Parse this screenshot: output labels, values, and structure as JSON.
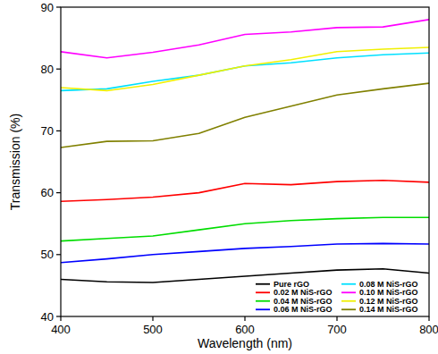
{
  "chart_data": {
    "type": "line",
    "x_label": "Wavelength (nm)",
    "y_label": "Transmission (%)",
    "x": [
      400,
      450,
      500,
      550,
      600,
      650,
      700,
      750,
      800
    ],
    "xlim": [
      400,
      800
    ],
    "xticks": [
      400,
      500,
      600,
      700,
      800
    ],
    "ylim": [
      40,
      90
    ],
    "yticks": [
      40,
      50,
      60,
      70,
      80,
      90
    ],
    "grid": false,
    "legend": "lower right",
    "series": [
      {
        "name": "Pure rGO",
        "color": "#000000",
        "values": [
          46.0,
          45.6,
          45.5,
          46.0,
          46.5,
          47.0,
          47.5,
          47.7,
          47.0
        ]
      },
      {
        "name": "0.02 M NiS-rGO",
        "color": "#ff0000",
        "values": [
          58.6,
          58.9,
          59.3,
          60.0,
          61.5,
          61.3,
          61.8,
          62.0,
          61.7
        ]
      },
      {
        "name": "0.04 M NiS-rGO",
        "color": "#00dd00",
        "values": [
          52.2,
          52.6,
          53.0,
          54.0,
          55.0,
          55.5,
          55.8,
          56.0,
          56.0
        ]
      },
      {
        "name": "0.06 M NiS-rGO",
        "color": "#0000ff",
        "values": [
          48.7,
          49.3,
          50.0,
          50.5,
          51.0,
          51.3,
          51.7,
          51.8,
          51.7
        ]
      },
      {
        "name": "0.08 M NiS-rGO",
        "color": "#00e0ff",
        "values": [
          76.5,
          76.8,
          78.0,
          79.0,
          80.5,
          81.0,
          81.8,
          82.3,
          82.6
        ]
      },
      {
        "name": "0.10 M NiS-rGO",
        "color": "#ff00ff",
        "values": [
          82.8,
          81.8,
          82.7,
          83.9,
          85.6,
          86.0,
          86.7,
          86.8,
          88.0
        ]
      },
      {
        "name": "0.12 M NiS-rGO",
        "color": "#f0f000",
        "values": [
          77.0,
          76.5,
          77.5,
          79.0,
          80.5,
          81.5,
          82.8,
          83.2,
          83.5
        ]
      },
      {
        "name": "0.14 M NiS-rGO",
        "color": "#808000",
        "values": [
          67.3,
          68.3,
          68.4,
          69.6,
          72.2,
          74.0,
          75.8,
          76.8,
          77.7
        ]
      }
    ]
  }
}
